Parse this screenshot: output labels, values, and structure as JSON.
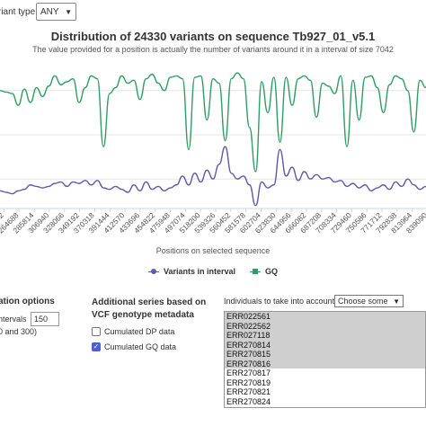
{
  "variant_type": {
    "label": "riant type:",
    "value": "ANY"
  },
  "chart_data": {
    "type": "line",
    "title": "Distribution of 24330 variants on sequence Tb927_01_v5.1",
    "subtitle": "The value provided for a position is actually the number of variants around it in a interval of size 7042",
    "xlabel": "Positions on selected sequence",
    "x_tick_labels": [
      "3462",
      "264688",
      "285814",
      "306940",
      "328066",
      "349192",
      "370318",
      "391444",
      "412570",
      "433696",
      "454822",
      "475948",
      "497074",
      "518200",
      "539326",
      "560452",
      "581578",
      "602704",
      "623830",
      "644956",
      "666082",
      "687208",
      "708334",
      "729460",
      "750586",
      "771712",
      "792838",
      "813964",
      "839090"
    ],
    "series": [
      {
        "name": "Variants in interval",
        "color": "#5d5aa6",
        "values": [
          1.2,
          1.1,
          1.0,
          1.2,
          1.3,
          1.6,
          1.5,
          1.4,
          1.5,
          1.7,
          1.8,
          1.5,
          1.8,
          1.7,
          1.9,
          1.6,
          1.9,
          1.4,
          1.3,
          1.5,
          1.3,
          1.1,
          1.6,
          1.2,
          1.8,
          1.3,
          1.5,
          1.2,
          1.4,
          1.6,
          2.2,
          1.6,
          2.4,
          1.8,
          2.6,
          2.0,
          3.0,
          4.2,
          2.4,
          2.0,
          2.2,
          1.6,
          0.2,
          1.8,
          1.4,
          1.6,
          4.0,
          2.2,
          2.8,
          1.9,
          2.5,
          2.0,
          2.3,
          2.0,
          2.1,
          1.8,
          1.9,
          1.5,
          1.7,
          1.4,
          1.6,
          1.2,
          1.4,
          1.6,
          1.3,
          1.8,
          1.5,
          2.0,
          1.6,
          1.3,
          1.5
        ]
      },
      {
        "name": "GQ",
        "color": "#2e9e63",
        "values": [
          8.0,
          7.9,
          7.8,
          7.0,
          8.1,
          7.2,
          8.2,
          7.6,
          8.3,
          9.0,
          8.4,
          8.6,
          8.8,
          7.2,
          8.2,
          9.0,
          8.8,
          4.2,
          7.8,
          8.2,
          9.0,
          8.5,
          8.7,
          7.4,
          8.8,
          9.1,
          8.5,
          8.0,
          8.9,
          9.0,
          8.8,
          4.0,
          8.9,
          9.0,
          6.0,
          8.8,
          8.5,
          4.6,
          8.8,
          9.2,
          8.8,
          5.5,
          2.5,
          8.6,
          6.5,
          8.9,
          4.5,
          8.9,
          7.0,
          8.8,
          9.0,
          8.7,
          6.2,
          8.5,
          8.3,
          7.8,
          9.0,
          4.2,
          8.7,
          6.0,
          8.9,
          9.0,
          8.2,
          6.5,
          8.4,
          9.0,
          8.8,
          8.0,
          5.2,
          8.7,
          8.2
        ]
      }
    ],
    "ylim": [
      0,
      10
    ],
    "grid": true,
    "legend": "bottom-center"
  },
  "axis": {
    "xlabel": "Positions on selected sequence"
  },
  "legend": {
    "v": "Variants in interval",
    "g": "GQ"
  },
  "options": {
    "heading": "ation options",
    "intervals_label": "ntervals",
    "intervals_value": "150",
    "range_hint": "0 and 300)"
  },
  "additional": {
    "heading": "Additional series based on VCF genotype metadata",
    "dp_label": "Cumulated DP data",
    "gq_label": "Cumulated GQ data"
  },
  "individuals": {
    "label": "Individuals to take into account",
    "select": "Choose some",
    "items": [
      {
        "name": "ERR022561",
        "selected": true
      },
      {
        "name": "ERR022562",
        "selected": true
      },
      {
        "name": "ERR027118",
        "selected": true
      },
      {
        "name": "ERR270814",
        "selected": true
      },
      {
        "name": "ERR270815",
        "selected": true
      },
      {
        "name": "ERR270816",
        "selected": true
      },
      {
        "name": "ERR270817",
        "selected": false
      },
      {
        "name": "ERR270819",
        "selected": false
      },
      {
        "name": "ERR270821",
        "selected": false
      },
      {
        "name": "ERR270824",
        "selected": false
      }
    ]
  }
}
